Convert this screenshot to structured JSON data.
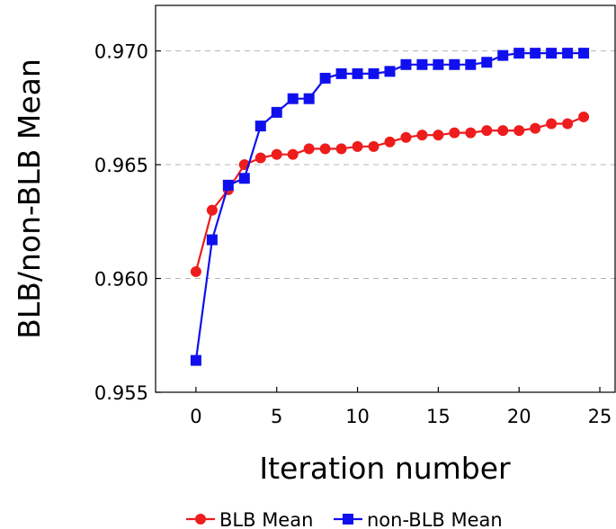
{
  "chart_data": {
    "type": "line",
    "xlabel": "Iteration number",
    "ylabel": "BLB/non-BLB Mean",
    "xlim": [
      -2.5,
      26
    ],
    "ylim": [
      0.955,
      0.972
    ],
    "x_ticks": [
      0,
      5,
      10,
      15,
      20,
      25
    ],
    "y_ticks": [
      0.955,
      0.96,
      0.965,
      0.97
    ],
    "x_tick_labels": [
      "0",
      "5",
      "10",
      "15",
      "20",
      "25"
    ],
    "y_tick_labels": [
      "0.955",
      "0.960",
      "0.965",
      "0.970"
    ],
    "grid": "horizontal dashed",
    "legend_position": "bottom",
    "x": [
      0,
      1,
      2,
      3,
      4,
      5,
      6,
      7,
      8,
      9,
      10,
      11,
      12,
      13,
      14,
      15,
      16,
      17,
      18,
      19,
      20,
      21,
      22,
      23,
      24
    ],
    "series": [
      {
        "name": "BLB Mean",
        "color": "#ee1c1c",
        "marker": "circle",
        "values": [
          0.9603,
          0.963,
          0.9639,
          0.965,
          0.9653,
          0.96545,
          0.96545,
          0.9657,
          0.9657,
          0.9657,
          0.9658,
          0.9658,
          0.966,
          0.9662,
          0.9663,
          0.9663,
          0.9664,
          0.9664,
          0.9665,
          0.9665,
          0.9665,
          0.9666,
          0.9668,
          0.9668,
          0.9671
        ]
      },
      {
        "name": "non-BLB Mean",
        "color": "#1010ee",
        "marker": "square",
        "values": [
          0.9564,
          0.9617,
          0.9641,
          0.9644,
          0.9667,
          0.9673,
          0.9679,
          0.9679,
          0.9688,
          0.969,
          0.969,
          0.969,
          0.9691,
          0.9694,
          0.9694,
          0.9694,
          0.9694,
          0.9694,
          0.9695,
          0.9698,
          0.9699,
          0.9699,
          0.9699,
          0.9699,
          0.9699
        ]
      }
    ]
  }
}
